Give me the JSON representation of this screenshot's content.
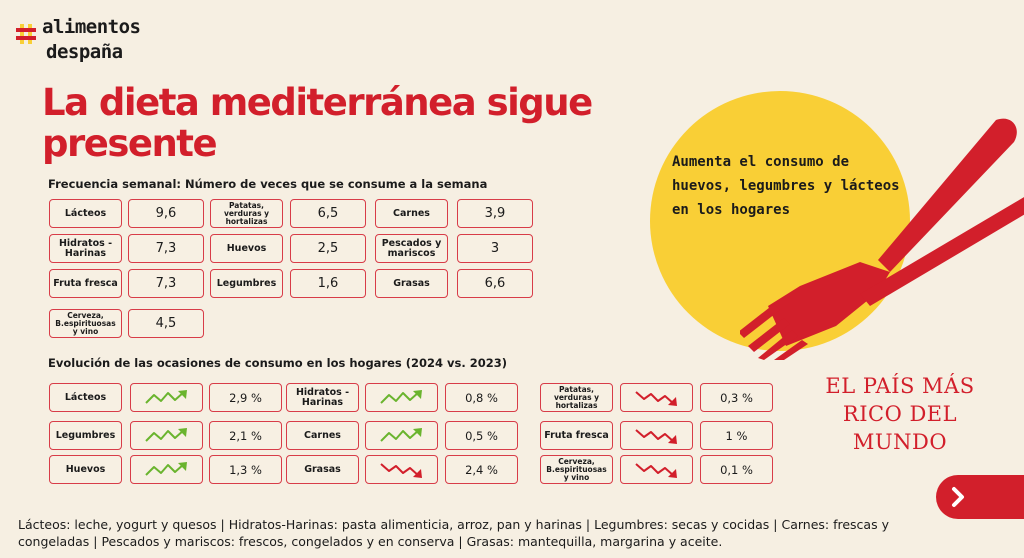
{
  "logo": {
    "line1": "alimentos",
    "line2": "despaña"
  },
  "headline": "La dieta mediterránea sigue presente",
  "weekly": {
    "title": "Frecuencia semanal: Número de veces que se consume a la semana",
    "rows": [
      [
        {
          "label": "Lácteos",
          "value": "9,6"
        },
        {
          "label": "Patatas, verduras y hortalizas",
          "value": "6,5"
        },
        {
          "label": "Carnes",
          "value": "3,9"
        }
      ],
      [
        {
          "label": "Hidratos -Harinas",
          "value": "7,3"
        },
        {
          "label": "Huevos",
          "value": "2,5"
        },
        {
          "label": "Pescados y mariscos",
          "value": "3"
        }
      ],
      [
        {
          "label": "Fruta fresca",
          "value": "7,3"
        },
        {
          "label": "Legumbres",
          "value": "1,6"
        },
        {
          "label": "Grasas",
          "value": "6,6"
        }
      ],
      [
        {
          "label": "Cerveza, B.espirituosas y vino",
          "value": "4,5"
        }
      ]
    ]
  },
  "evolution": {
    "title": "Evolución de las ocasiones de consumo en los hogares (2024 vs. 2023)",
    "columns": [
      [
        {
          "label": "Lácteos",
          "trend": "up",
          "value": "2,9 %"
        },
        {
          "label": "Legumbres",
          "trend": "up",
          "value": "2,1 %"
        },
        {
          "label": "Huevos",
          "trend": "up",
          "value": "1,3 %"
        }
      ],
      [
        {
          "label": "Hidratos -Harinas",
          "trend": "up",
          "value": "0,8 %"
        },
        {
          "label": "Carnes",
          "trend": "up",
          "value": "0,5 %"
        },
        {
          "label": "Grasas",
          "trend": "down",
          "value": "2,4 %"
        }
      ],
      [
        {
          "label": "Patatas, verduras y hortalizas",
          "trend": "down",
          "value": "0,3 %"
        },
        {
          "label": "Fruta fresca",
          "trend": "down",
          "value": "1 %"
        },
        {
          "label": "Cerveza, B.espirituosas y vino",
          "trend": "down",
          "value": "0,1 %"
        }
      ]
    ]
  },
  "highlight": "Aumenta el consumo de huevos, legumbres y lácteos en los hogares",
  "brand": "EL PAÍS MÁS RICO DEL MUNDO",
  "footnote": "Lácteos: leche, yogurt y quesos | Hidratos-Harinas: pasta alimenticia, arroz, pan y harinas | Legumbres: secas y cocidas | Carnes: frescas y congeladas | Pescados y mariscos: frescos, congelados y en conserva | Grasas: mantequilla, margarina y aceite.",
  "colors": {
    "accent": "#d21f2b",
    "background": "#f6efe2",
    "yellow": "#f9cf36",
    "up": "#6ab42e",
    "down": "#d21f2b"
  },
  "icons": {
    "up": "trend-up-icon",
    "down": "trend-down-icon",
    "next": "chevron-right-icon"
  }
}
